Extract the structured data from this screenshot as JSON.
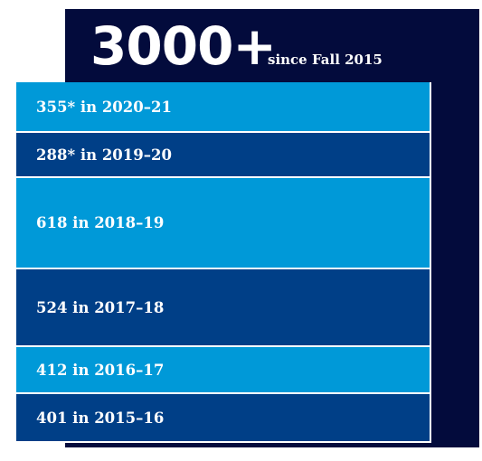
{
  "header": {
    "number": "3000+",
    "caption": "since Fall 2015"
  },
  "rows": [
    "355* in 2020–21",
    "288* in 2019–20",
    "618 in 2018–19",
    "524 in 2017–18",
    "412 in 2016–17",
    "401 in 2015–16"
  ]
}
